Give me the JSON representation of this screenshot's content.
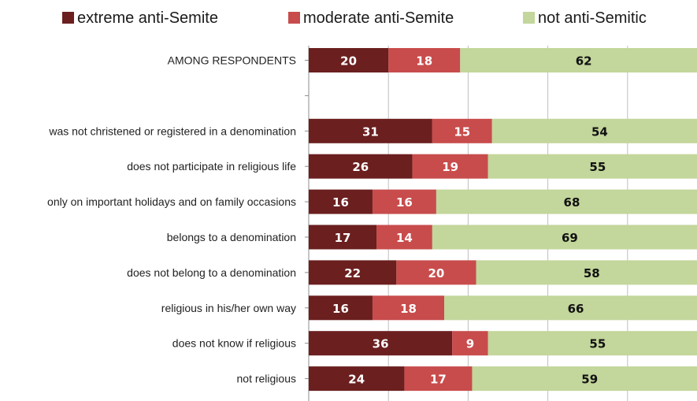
{
  "chart_data": {
    "type": "bar",
    "orientation": "horizontal",
    "stacked": true,
    "legend_position": "top",
    "grid": true,
    "xlim": [
      0,
      100
    ],
    "categories": [
      "AMONG RESPONDENTS",
      "",
      "was not christened or registered in a denomination",
      "does not participate in religious life",
      "only on important holidays and on family occasions",
      "belongs to a denomination",
      "does not belong to a denomination",
      "religious in his/her own way",
      "does not know if religious",
      "not religious"
    ],
    "series": [
      {
        "name": "extreme anti-Semite",
        "color": "#6b1f1f",
        "label_color": "#ffffff",
        "values": [
          20,
          null,
          31,
          26,
          16,
          17,
          22,
          16,
          36,
          24
        ]
      },
      {
        "name": "moderate anti-Semite",
        "color": "#c84c4c",
        "label_color": "#ffffff",
        "values": [
          18,
          null,
          15,
          19,
          16,
          14,
          20,
          18,
          9,
          17
        ]
      },
      {
        "name": "not anti-Semitic",
        "color": "#c3d69b",
        "label_color": "#111111",
        "values": [
          62,
          null,
          54,
          55,
          68,
          69,
          58,
          66,
          55,
          59
        ]
      }
    ]
  }
}
